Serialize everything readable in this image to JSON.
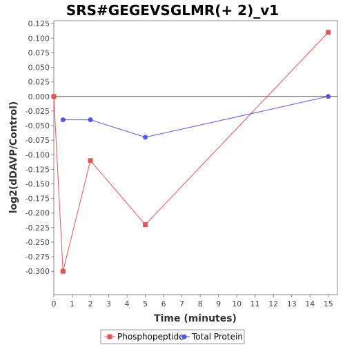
{
  "chart_data": {
    "type": "line",
    "title": "SRS#GEGEVSGLMR(+ 2)_v1",
    "xlabel": "Time (minutes)",
    "ylabel": "log2(dDAVP/Control)",
    "xlim": [
      0,
      15.5
    ],
    "ylim": [
      -0.34,
      0.13
    ],
    "x_ticks": [
      0,
      1,
      2,
      3,
      4,
      5,
      6,
      7,
      8,
      9,
      10,
      11,
      12,
      13,
      14,
      15
    ],
    "y_ticks": [
      -0.3,
      -0.275,
      -0.25,
      -0.225,
      -0.2,
      -0.175,
      -0.15,
      -0.125,
      -0.1,
      -0.075,
      -0.05,
      -0.025,
      0.0,
      0.025,
      0.05,
      0.075,
      0.1,
      0.125
    ],
    "y_tick_labels": [
      "-0.300",
      "-0.275",
      "-0.250",
      "-0.225",
      "-0.200",
      "-0.175",
      "-0.150",
      "-0.125",
      "-0.100",
      "-0.075",
      "-0.050",
      "-0.025",
      "0.000",
      "0.025",
      "0.050",
      "0.075",
      "0.100",
      "0.125"
    ],
    "zero_line": true,
    "grid": false,
    "legend_position": "bottom",
    "series": [
      {
        "name": "Phosphopeptide",
        "color": "#e05555",
        "marker": "square",
        "x": [
          0,
          0.5,
          2,
          5,
          15
        ],
        "y": [
          0.0,
          -0.3,
          -0.11,
          -0.22,
          0.11
        ]
      },
      {
        "name": "Total Protein",
        "color": "#5555e6",
        "marker": "circle",
        "x": [
          0.5,
          2,
          5,
          15
        ],
        "y": [
          -0.04,
          -0.04,
          -0.07,
          0.0
        ]
      }
    ]
  }
}
